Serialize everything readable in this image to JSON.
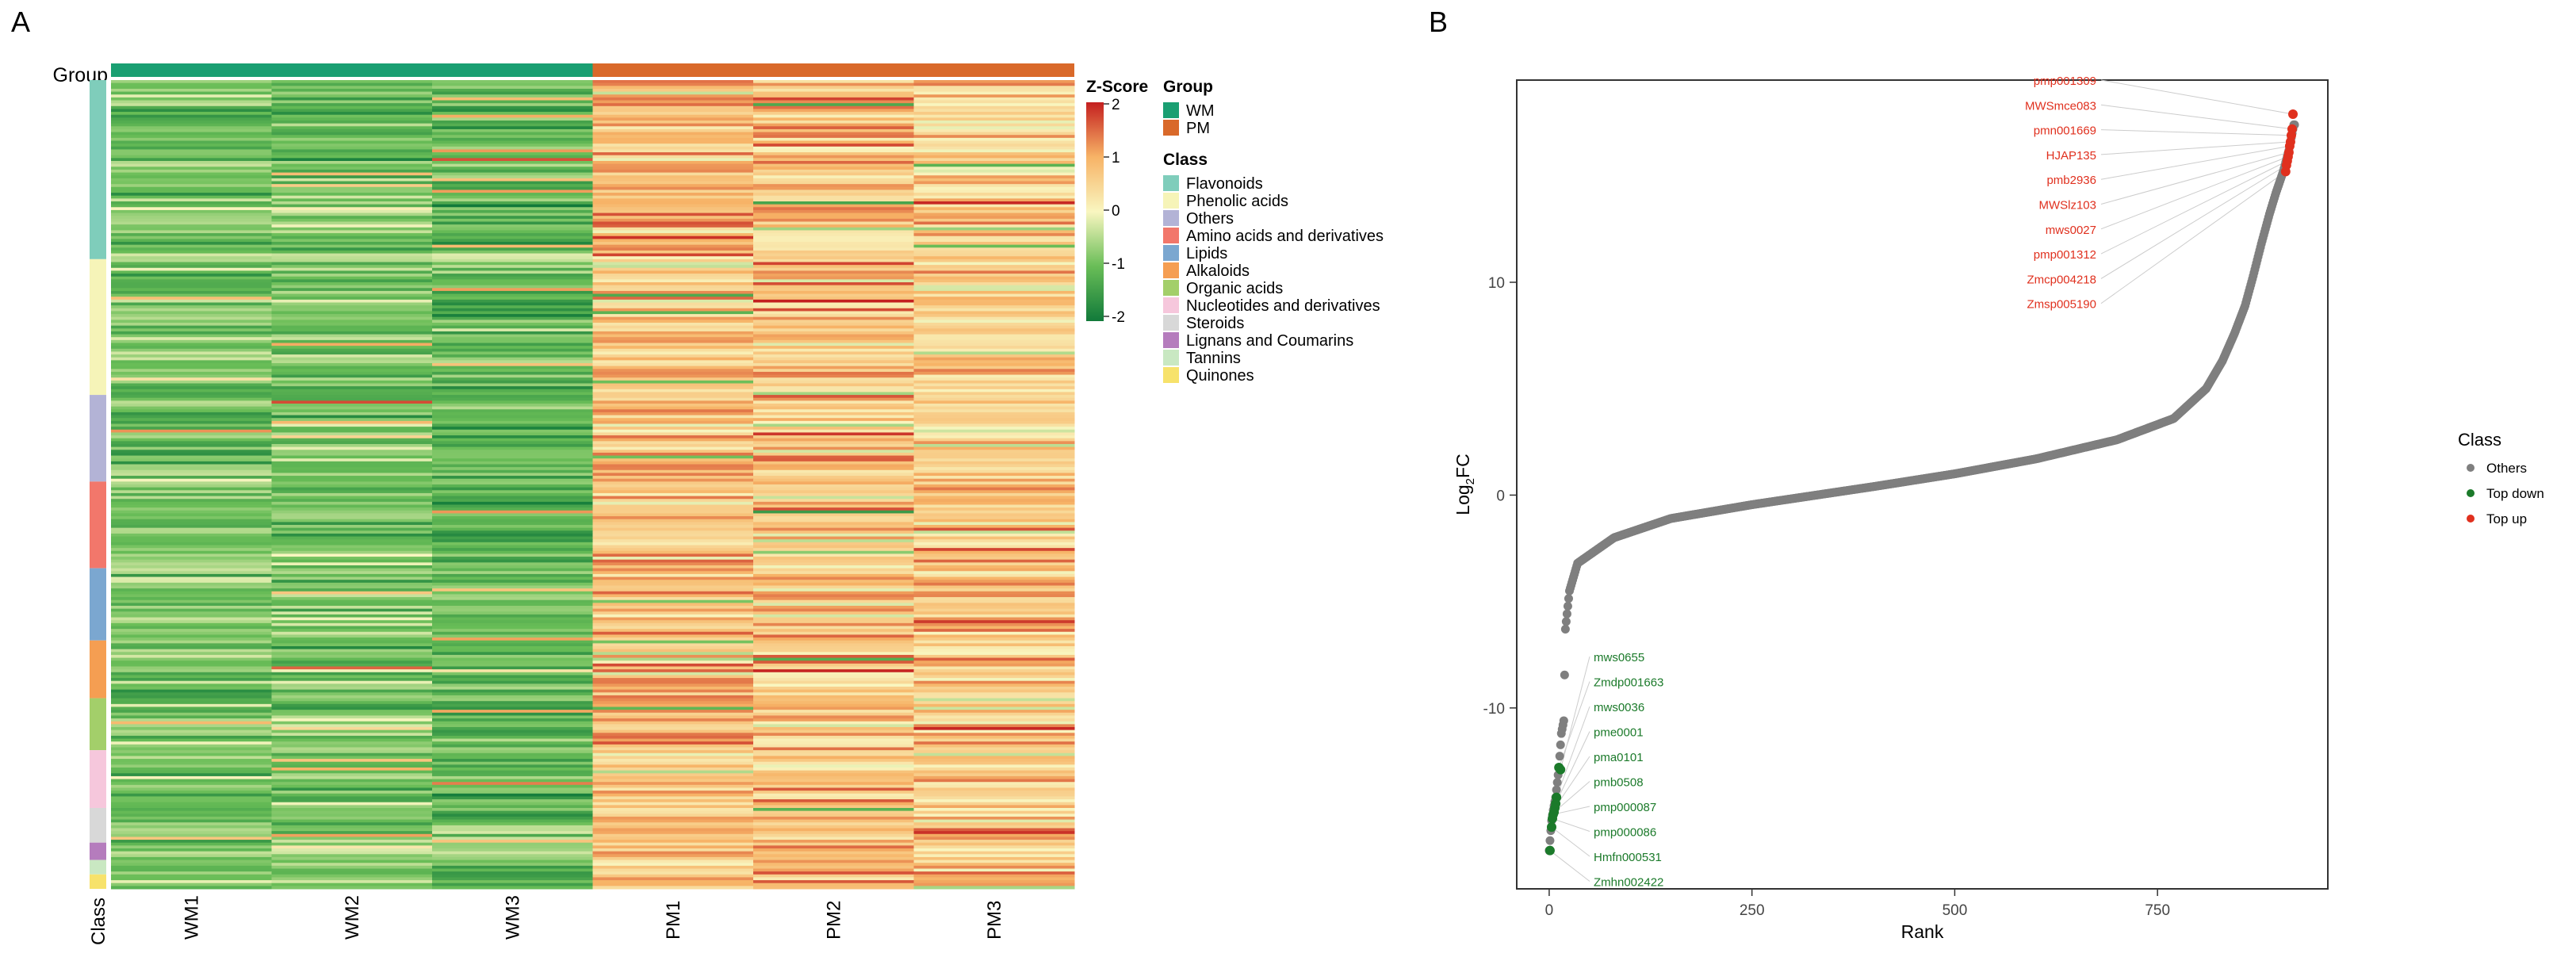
{
  "panel_a": {
    "letter": "A",
    "group_row_label": "Group",
    "class_col_label": "Class",
    "samples": [
      "WM1",
      "WM2",
      "WM3",
      "PM1",
      "PM2",
      "PM3"
    ],
    "zscore": {
      "title": "Z-Score",
      "ticks": [
        "2",
        "1",
        "0",
        "-1",
        "-2"
      ]
    },
    "legend_group": {
      "title": "Group",
      "items": [
        {
          "label": "WM",
          "color": "#1a9f72"
        },
        {
          "label": "PM",
          "color": "#d9692a"
        }
      ]
    },
    "legend_class": {
      "title": "Class",
      "items": [
        {
          "label": "Flavonoids",
          "color": "#7fcdbb"
        },
        {
          "label": "Phenolic acids",
          "color": "#f6f4b8"
        },
        {
          "label": "Others",
          "color": "#b3b3d6"
        },
        {
          "label": "Amino acids and derivatives",
          "color": "#f2776b"
        },
        {
          "label": "Lipids",
          "color": "#7ba7d0"
        },
        {
          "label": "Alkaloids",
          "color": "#f59e52"
        },
        {
          "label": "Organic acids",
          "color": "#a3cf6a"
        },
        {
          "label": "Nucleotides and derivatives",
          "color": "#f6c7dc"
        },
        {
          "label": "Steroids",
          "color": "#d8d8d8"
        },
        {
          "label": "Lignans and Coumarins",
          "color": "#b57cbd"
        },
        {
          "label": "Tannins",
          "color": "#c9e8c2"
        },
        {
          "label": "Quinones",
          "color": "#f7e26b"
        }
      ]
    }
  },
  "panel_b": {
    "letter": "B",
    "legend": {
      "title": "Class",
      "items": [
        {
          "label": "Others",
          "color": "#7f7f7f"
        },
        {
          "label": "Top down",
          "color": "#1b7a2a"
        },
        {
          "label": "Top up",
          "color": "#e0301e"
        }
      ]
    },
    "top_up_labels": [
      "pmp001309",
      "MWSmce083",
      "pmn001669",
      "HJAP135",
      "pmb2936",
      "MWSlz103",
      "mws0027",
      "pmp001312",
      "Zmcp004218",
      "Zmsp005190"
    ],
    "top_down_labels": [
      "mws0655",
      "Zmdp001663",
      "mws0036",
      "pme0001",
      "pma0101",
      "pmb0508",
      "pmp000087",
      "pmp000086",
      "Hmfn000531",
      "Zmhn002422"
    ]
  },
  "chart_data": {
    "type": "scatter",
    "title": "",
    "xlabel": "Rank",
    "ylabel_main": "Log",
    "ylabel_sub": "2",
    "ylabel_tail": "FC",
    "xlim": [
      -40,
      960
    ],
    "ylim": [
      -18.5,
      19.5
    ],
    "x_ticks": [
      "0",
      "250",
      "500",
      "750"
    ],
    "y_ticks": [
      "-10",
      "0",
      "10"
    ],
    "n_points": 920,
    "curve_knots": [
      [
        0,
        -16.7
      ],
      [
        3,
        -15.3
      ],
      [
        5,
        -14.8
      ],
      [
        8,
        -14.2
      ],
      [
        12,
        -12.8
      ],
      [
        15,
        -11.2
      ],
      [
        18,
        -10.6
      ],
      [
        20,
        -6.3
      ],
      [
        25,
        -4.5
      ],
      [
        35,
        -3.2
      ],
      [
        50,
        -2.8
      ],
      [
        80,
        -2.0
      ],
      [
        150,
        -1.1
      ],
      [
        250,
        -0.45
      ],
      [
        400,
        0.4
      ],
      [
        500,
        1.0
      ],
      [
        600,
        1.7
      ],
      [
        700,
        2.6
      ],
      [
        770,
        3.6
      ],
      [
        810,
        5.0
      ],
      [
        830,
        6.3
      ],
      [
        845,
        7.6
      ],
      [
        858,
        8.9
      ],
      [
        868,
        10.3
      ],
      [
        878,
        11.8
      ],
      [
        888,
        13.2
      ],
      [
        896,
        14.2
      ],
      [
        905,
        15.2
      ],
      [
        912,
        16.2
      ],
      [
        918,
        17.4
      ]
    ],
    "top_up_points": [
      [
        917,
        17.9
      ],
      [
        916,
        17.2
      ],
      [
        915,
        16.9
      ],
      [
        914,
        16.6
      ],
      [
        913,
        16.4
      ],
      [
        912,
        16.1
      ],
      [
        911,
        15.9
      ],
      [
        910,
        15.7
      ],
      [
        909,
        15.5
      ],
      [
        908,
        15.2
      ]
    ],
    "top_down_points": [
      [
        14,
        -12.9
      ],
      [
        12,
        -12.8
      ],
      [
        9,
        -14.2
      ],
      [
        8,
        -14.5
      ],
      [
        7,
        -14.7
      ],
      [
        6,
        -14.9
      ],
      [
        5,
        -15.0
      ],
      [
        4,
        -15.2
      ],
      [
        3,
        -15.6
      ],
      [
        1,
        -16.7
      ]
    ]
  }
}
